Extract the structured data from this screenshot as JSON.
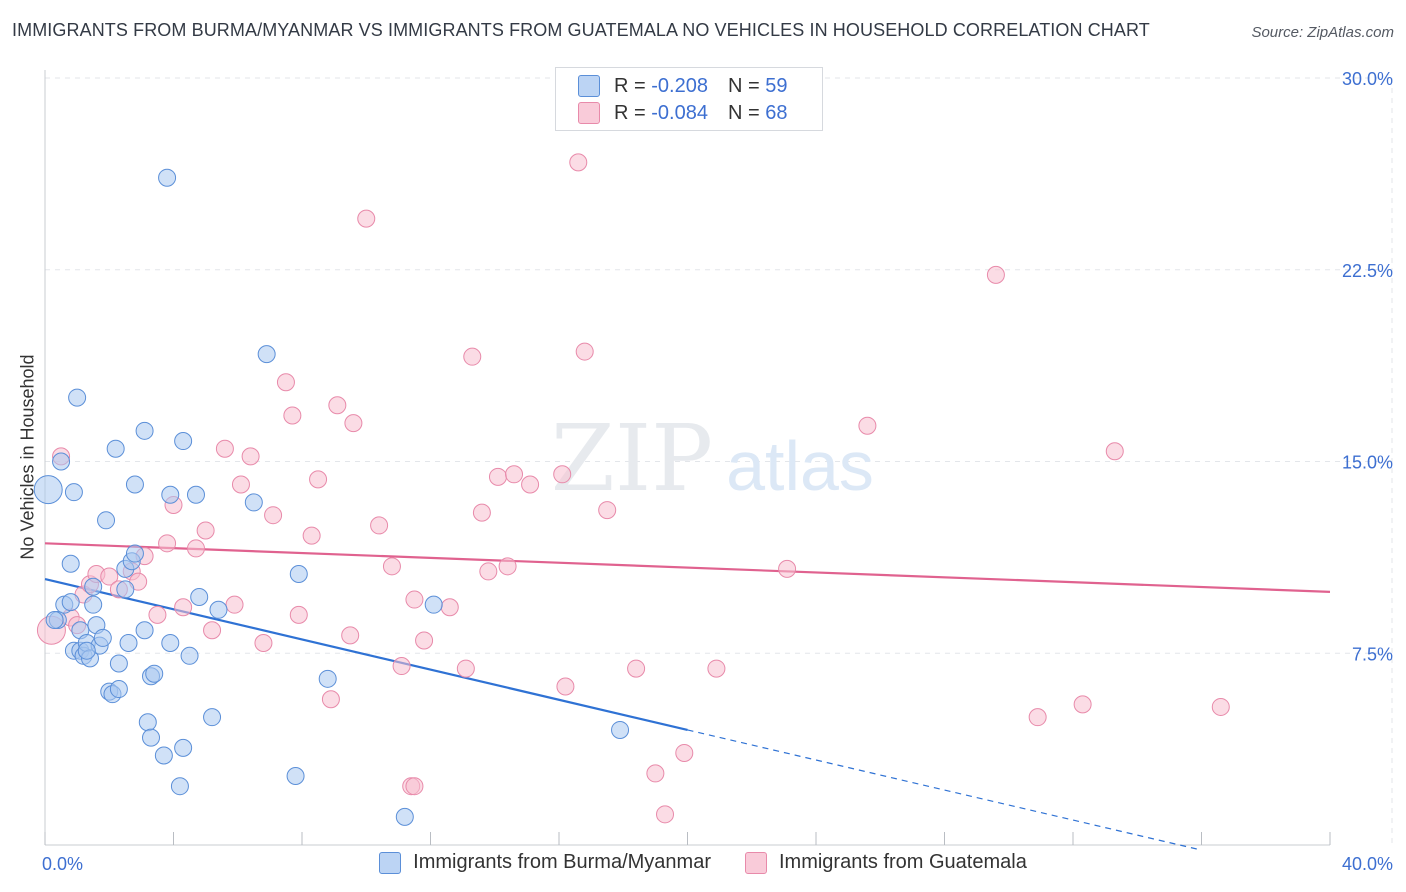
{
  "title": "IMMIGRANTS FROM BURMA/MYANMAR VS IMMIGRANTS FROM GUATEMALA NO VEHICLES IN HOUSEHOLD CORRELATION CHART",
  "source": "Source: ZipAtlas.com",
  "watermark": {
    "zip": "ZIP",
    "atlas": "atlas"
  },
  "legend": {
    "rows": [
      {
        "r_label": "R =",
        "r_value": "-0.208",
        "n_label": "N =",
        "n_value": "59"
      },
      {
        "r_label": "R =",
        "r_value": "-0.084",
        "n_label": "N =",
        "n_value": "68"
      }
    ]
  },
  "colors": {
    "blue_fill": "#aac8f0",
    "blue_stroke": "#5b8fd8",
    "blue_line": "#2f72d4",
    "pink_fill": "#f7bfd0",
    "pink_stroke": "#e88aaa",
    "pink_line": "#e0628f",
    "grid": "#e3e6ea",
    "axis_text": "#3d6fd1"
  },
  "chart_data": {
    "type": "scatter",
    "title": "IMMIGRANTS FROM BURMA/MYANMAR VS IMMIGRANTS FROM GUATEMALA NO VEHICLES IN HOUSEHOLD CORRELATION CHART",
    "xlabel": "",
    "ylabel": "No Vehicles in Household",
    "xlim": [
      0,
      40
    ],
    "ylim": [
      0,
      30
    ],
    "x_tick_labels": [
      {
        "value": 0,
        "label": "0.0%"
      },
      {
        "value": 40,
        "label": "40.0%"
      }
    ],
    "y_tick_labels": [
      {
        "value": 7.5,
        "label": "7.5%"
      },
      {
        "value": 15,
        "label": "15.0%"
      },
      {
        "value": 22.5,
        "label": "22.5%"
      },
      {
        "value": 30,
        "label": "30.0%"
      }
    ],
    "series": [
      {
        "name": "Immigrants from Burma/Myanmar",
        "color": "blue",
        "trend": {
          "x0": 0,
          "y0": 10.4,
          "x1": 20,
          "y1": 4.5,
          "dash_to_x": 36,
          "dash_to_y": -0.2
        },
        "points": [
          [
            0.1,
            13.9,
            2
          ],
          [
            0.5,
            15.0,
            1
          ],
          [
            0.9,
            13.8,
            1
          ],
          [
            0.4,
            8.8,
            1
          ],
          [
            0.6,
            9.4,
            1
          ],
          [
            0.8,
            9.5,
            1
          ],
          [
            0.8,
            11.0,
            1
          ],
          [
            0.9,
            7.6,
            1
          ],
          [
            1.1,
            8.4,
            1
          ],
          [
            1.1,
            7.6,
            1
          ],
          [
            1.2,
            7.4,
            1
          ],
          [
            1.3,
            7.9,
            1
          ],
          [
            1.4,
            7.3,
            1
          ],
          [
            1.5,
            9.4,
            1
          ],
          [
            1.5,
            10.1,
            1
          ],
          [
            1.6,
            8.6,
            1
          ],
          [
            1.7,
            7.8,
            1
          ],
          [
            1.8,
            8.1,
            1
          ],
          [
            1.0,
            17.5,
            1
          ],
          [
            1.9,
            12.7,
            1
          ],
          [
            2.2,
            15.5,
            1
          ],
          [
            2.0,
            6.0,
            1
          ],
          [
            2.1,
            5.9,
            1
          ],
          [
            2.3,
            6.1,
            1
          ],
          [
            2.3,
            7.1,
            1
          ],
          [
            2.5,
            10.8,
            1
          ],
          [
            2.5,
            10.0,
            1
          ],
          [
            2.6,
            7.9,
            1
          ],
          [
            2.7,
            11.1,
            1
          ],
          [
            2.8,
            11.4,
            1
          ],
          [
            2.8,
            14.1,
            1
          ],
          [
            3.1,
            8.4,
            1
          ],
          [
            3.1,
            16.2,
            1
          ],
          [
            3.2,
            4.8,
            1
          ],
          [
            3.3,
            4.2,
            1
          ],
          [
            3.3,
            6.6,
            1
          ],
          [
            3.4,
            6.7,
            1
          ],
          [
            3.7,
            3.5,
            1
          ],
          [
            3.8,
            26.1,
            1
          ],
          [
            3.9,
            13.7,
            1
          ],
          [
            3.9,
            7.9,
            1
          ],
          [
            4.2,
            2.3,
            1
          ],
          [
            4.3,
            3.8,
            1
          ],
          [
            4.3,
            15.8,
            1
          ],
          [
            4.5,
            7.4,
            1
          ],
          [
            4.7,
            13.7,
            1
          ],
          [
            4.8,
            9.7,
            1
          ],
          [
            5.2,
            5.0,
            1
          ],
          [
            5.4,
            9.2,
            1
          ],
          [
            6.5,
            13.4,
            1
          ],
          [
            6.9,
            19.2,
            1
          ],
          [
            7.8,
            2.7,
            1
          ],
          [
            7.9,
            10.6,
            1
          ],
          [
            8.8,
            6.5,
            1
          ],
          [
            11.2,
            1.1,
            1
          ],
          [
            12.1,
            9.4,
            1
          ],
          [
            17.9,
            4.5,
            1
          ],
          [
            0.3,
            8.8,
            1
          ],
          [
            1.3,
            7.6,
            1
          ]
        ]
      },
      {
        "name": "Immigrants from Guatemala",
        "color": "pink",
        "trend": {
          "x0": 0,
          "y0": 11.8,
          "x1": 40,
          "y1": 9.9
        },
        "points": [
          [
            0.2,
            8.4,
            2
          ],
          [
            0.5,
            15.2,
            1
          ],
          [
            0.8,
            8.9,
            1
          ],
          [
            1.0,
            8.6,
            1
          ],
          [
            1.2,
            9.8,
            1
          ],
          [
            1.4,
            10.2,
            1
          ],
          [
            1.6,
            10.6,
            1
          ],
          [
            2.0,
            10.5,
            1
          ],
          [
            2.3,
            10.0,
            1
          ],
          [
            2.7,
            10.7,
            1
          ],
          [
            2.9,
            10.3,
            1
          ],
          [
            3.1,
            11.3,
            1
          ],
          [
            3.5,
            9.0,
            1
          ],
          [
            3.8,
            11.8,
            1
          ],
          [
            4.0,
            13.3,
            1
          ],
          [
            4.3,
            9.3,
            1
          ],
          [
            4.7,
            11.6,
            1
          ],
          [
            5.0,
            12.3,
            1
          ],
          [
            5.2,
            8.4,
            1
          ],
          [
            5.6,
            15.5,
            1
          ],
          [
            5.9,
            9.4,
            1
          ],
          [
            6.1,
            14.1,
            1
          ],
          [
            6.4,
            15.2,
            1
          ],
          [
            6.8,
            7.9,
            1
          ],
          [
            7.1,
            12.9,
            1
          ],
          [
            7.5,
            18.1,
            1
          ],
          [
            7.7,
            16.8,
            1
          ],
          [
            7.9,
            9.0,
            1
          ],
          [
            8.3,
            12.1,
            1
          ],
          [
            8.5,
            14.3,
            1
          ],
          [
            8.9,
            5.7,
            1
          ],
          [
            9.1,
            17.2,
            1
          ],
          [
            9.5,
            8.2,
            1
          ],
          [
            9.6,
            16.5,
            1
          ],
          [
            10.0,
            24.5,
            1
          ],
          [
            10.4,
            12.5,
            1
          ],
          [
            10.8,
            10.9,
            1
          ],
          [
            11.1,
            7.0,
            1
          ],
          [
            11.4,
            2.3,
            1
          ],
          [
            11.5,
            9.6,
            1
          ],
          [
            11.5,
            2.3,
            1
          ],
          [
            11.8,
            8.0,
            1
          ],
          [
            12.6,
            9.3,
            1
          ],
          [
            13.1,
            6.9,
            1
          ],
          [
            13.3,
            19.1,
            1
          ],
          [
            13.6,
            13.0,
            1
          ],
          [
            13.8,
            10.7,
            1
          ],
          [
            14.1,
            14.4,
            1
          ],
          [
            14.4,
            10.9,
            1
          ],
          [
            14.6,
            14.5,
            1
          ],
          [
            15.1,
            14.1,
            1
          ],
          [
            16.1,
            14.5,
            1
          ],
          [
            16.2,
            6.2,
            1
          ],
          [
            16.6,
            26.7,
            1
          ],
          [
            16.8,
            19.3,
            1
          ],
          [
            17.5,
            13.1,
            1
          ],
          [
            18.4,
            6.9,
            1
          ],
          [
            19.0,
            2.8,
            1
          ],
          [
            19.3,
            1.2,
            1
          ],
          [
            19.9,
            3.6,
            1
          ],
          [
            20.9,
            6.9,
            1
          ],
          [
            23.1,
            10.8,
            1
          ],
          [
            25.6,
            16.4,
            1
          ],
          [
            29.6,
            22.3,
            1
          ],
          [
            30.9,
            5.0,
            1
          ],
          [
            32.3,
            5.5,
            1
          ],
          [
            33.3,
            15.4,
            1
          ],
          [
            36.6,
            5.4,
            1
          ]
        ]
      }
    ]
  }
}
